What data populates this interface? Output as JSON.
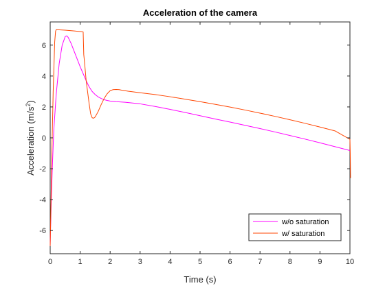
{
  "chart_data": {
    "type": "line",
    "title": "Acceleration of the camera",
    "xlabel": "Time (s)",
    "ylabel_prefix": "Acceleration (m/s",
    "ylabel_sup": "2",
    "ylabel_suffix": ")",
    "xlim": [
      0,
      10
    ],
    "ylim": [
      -7.5,
      7.5
    ],
    "xticks": [
      0,
      1,
      2,
      3,
      4,
      5,
      6,
      7,
      8,
      9,
      10
    ],
    "yticks": [
      -6,
      -4,
      -2,
      0,
      2,
      4,
      6
    ],
    "grid": false,
    "legend_position": "bottom-right",
    "series": [
      {
        "name": "w/o saturation",
        "color": "#ff00ff",
        "x": [
          0,
          0.03,
          0.07,
          0.12,
          0.2,
          0.3,
          0.4,
          0.5,
          0.55,
          0.6,
          0.7,
          0.8,
          0.9,
          1.0,
          1.1,
          1.2,
          1.3,
          1.4,
          1.5,
          1.6,
          1.7,
          1.8,
          1.9,
          2.0,
          2.1,
          2.2,
          2.5,
          3.0,
          3.5,
          4.0,
          4.5,
          5.0,
          5.5,
          6.0,
          6.5,
          7.0,
          7.5,
          8.0,
          8.5,
          9.0,
          9.5,
          10.0
        ],
        "y": [
          -7.0,
          -4.5,
          -2.0,
          0.5,
          2.8,
          4.8,
          6.0,
          6.55,
          6.6,
          6.5,
          6.1,
          5.6,
          5.1,
          4.6,
          4.15,
          3.7,
          3.3,
          3.0,
          2.8,
          2.65,
          2.55,
          2.47,
          2.42,
          2.38,
          2.36,
          2.34,
          2.3,
          2.2,
          2.03,
          1.84,
          1.64,
          1.43,
          1.22,
          1.02,
          0.81,
          0.6,
          0.38,
          0.15,
          -0.08,
          -0.32,
          -0.57,
          -0.82
        ]
      },
      {
        "name": "w/ saturation",
        "color": "#ff4500",
        "x": [
          0,
          0.02,
          0.05,
          0.1,
          0.15,
          0.18,
          0.2,
          0.5,
          0.8,
          1.0,
          1.1,
          1.12,
          1.15,
          1.2,
          1.3,
          1.35,
          1.4,
          1.45,
          1.5,
          1.6,
          1.7,
          1.8,
          1.9,
          2.0,
          2.1,
          2.2,
          2.3,
          2.4,
          2.6,
          3.0,
          3.5,
          4.0,
          4.5,
          5.0,
          5.5,
          6.0,
          6.5,
          7.0,
          7.5,
          8.0,
          8.5,
          9.0,
          9.5,
          10.0,
          10.01,
          10.02
        ],
        "y": [
          -7.0,
          -5.0,
          -1.5,
          3.0,
          6.2,
          6.9,
          7.0,
          6.97,
          6.92,
          6.88,
          6.85,
          5.4,
          4.8,
          3.7,
          2.2,
          1.55,
          1.3,
          1.27,
          1.35,
          1.7,
          2.15,
          2.55,
          2.85,
          3.05,
          3.12,
          3.13,
          3.12,
          3.08,
          3.02,
          2.92,
          2.8,
          2.66,
          2.5,
          2.34,
          2.17,
          1.99,
          1.8,
          1.6,
          1.39,
          1.17,
          0.94,
          0.7,
          0.45,
          -0.1,
          -1.0,
          -2.6
        ]
      }
    ]
  }
}
